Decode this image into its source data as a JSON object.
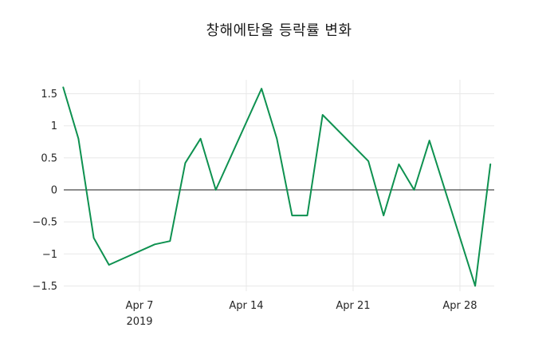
{
  "chart_data": {
    "type": "line",
    "title": "창해에탄올 등락률 변화",
    "xlabel": "",
    "ylabel": "",
    "x_axis_year_label": "2019",
    "x_ticks": [
      {
        "label": "Apr 7",
        "date": "2019-04-07",
        "show_year": true
      },
      {
        "label": "Apr 14",
        "date": "2019-04-14",
        "show_year": false
      },
      {
        "label": "Apr 21",
        "date": "2019-04-21",
        "show_year": false
      },
      {
        "label": "Apr 28",
        "date": "2019-04-28",
        "show_year": false
      }
    ],
    "y_ticks": [
      1.5,
      1,
      0.5,
      0,
      -0.5,
      -1,
      -1.5
    ],
    "y_tick_labels": [
      "1.5",
      "1",
      "0.5",
      "0",
      "−0.5",
      "−1",
      "−1.5"
    ],
    "ylim": [
      -1.72,
      1.72
    ],
    "grid": true,
    "zero_line": true,
    "legend": "none",
    "colors": {
      "line": "#0e9150",
      "grid": "#e8e8e8",
      "zero_line": "#1a1a1a",
      "background": "#ffffff",
      "text": "#262626"
    },
    "series": [
      {
        "name": "등락률",
        "points": [
          [
            "2019-04-02",
            1.6
          ],
          [
            "2019-04-03",
            0.8
          ],
          [
            "2019-04-04",
            -0.75
          ],
          [
            "2019-04-05",
            -1.17
          ],
          [
            "2019-04-08",
            -0.85
          ],
          [
            "2019-04-09",
            -0.8
          ],
          [
            "2019-04-10",
            0.42
          ],
          [
            "2019-04-11",
            0.8
          ],
          [
            "2019-04-12",
            0.0
          ],
          [
            "2019-04-15",
            1.58
          ],
          [
            "2019-04-16",
            0.8
          ],
          [
            "2019-04-17",
            -0.4
          ],
          [
            "2019-04-18",
            -0.4
          ],
          [
            "2019-04-19",
            1.17
          ],
          [
            "2019-04-22",
            0.45
          ],
          [
            "2019-04-23",
            -0.4
          ],
          [
            "2019-04-24",
            0.4
          ],
          [
            "2019-04-25",
            0.0
          ],
          [
            "2019-04-26",
            0.77
          ],
          [
            "2019-04-29",
            -1.5
          ],
          [
            "2019-04-30",
            0.4
          ]
        ]
      }
    ]
  }
}
